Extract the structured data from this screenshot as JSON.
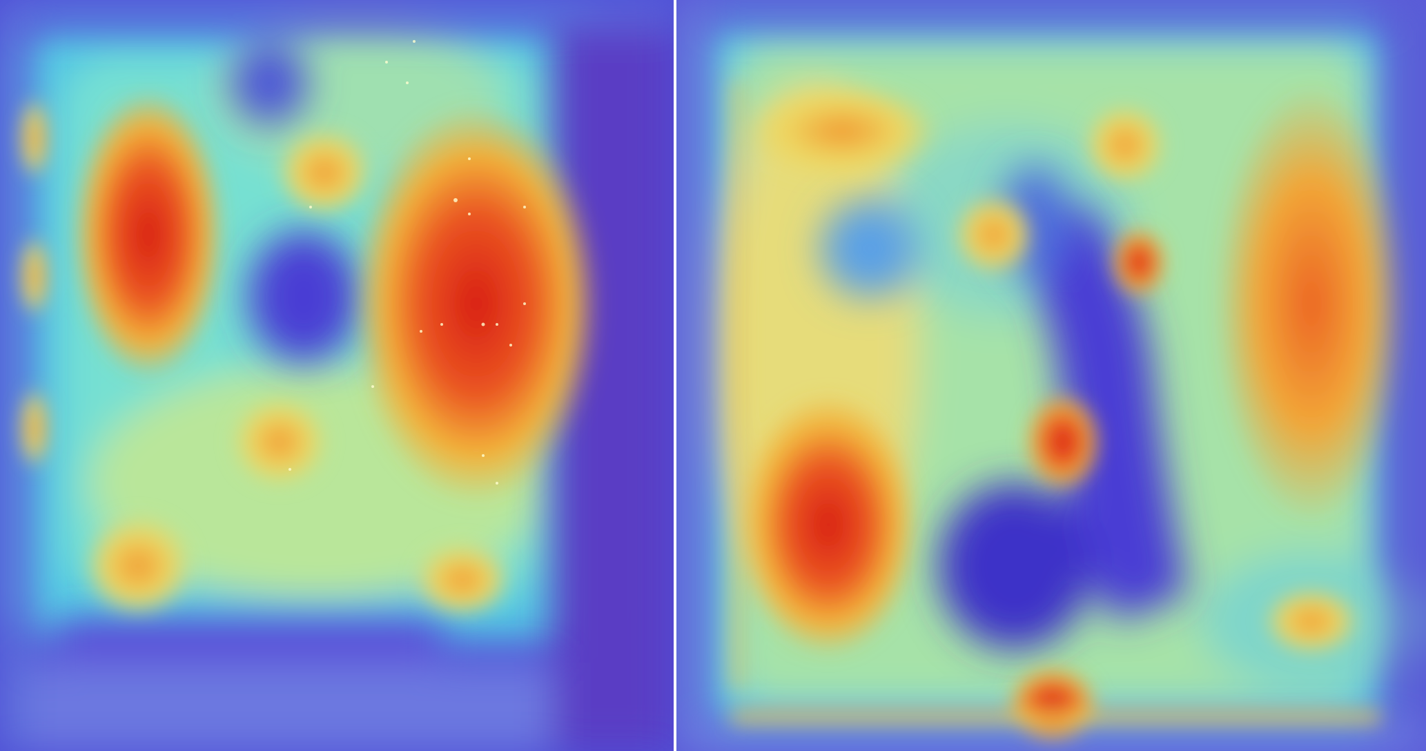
{
  "figure": {
    "panels": [
      {
        "name": "left",
        "kind": "attention-heatmap-overlay"
      },
      {
        "name": "right",
        "kind": "attention-heatmap-overlay"
      }
    ],
    "colormap": [
      "#3a2fd0",
      "#3fa8e8",
      "#5fe0d8",
      "#e8e070",
      "#f2a83a",
      "#e02a1a"
    ]
  }
}
